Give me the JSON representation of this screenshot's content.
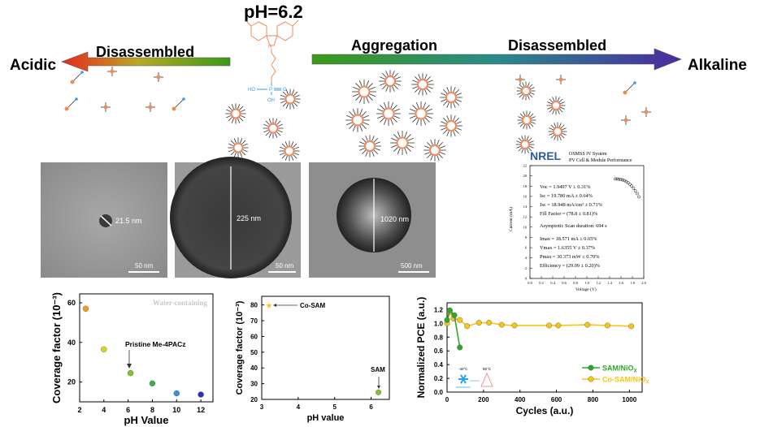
{
  "schematic": {
    "ph_title": "pH=6.2",
    "acidic": "Acidic",
    "alkaline": "Alkaline",
    "left_label": "Disassembled",
    "aggregation": "Aggregation",
    "right_label": "Disassembled",
    "molecule_ho": "HO",
    "molecule_p": "P",
    "molecule_o": "O",
    "molecule_oh": "OH",
    "molecule_n": "N",
    "colors": {
      "acid": "#e8271c",
      "neutral": "#3a9a18",
      "base": "#4b2aa0",
      "molecule": "#f08a5d",
      "phosphonic": "#3d9be9"
    }
  },
  "tem": [
    {
      "size": "21.5 nm",
      "scale": "50 nm"
    },
    {
      "size": "225 nm",
      "scale": "50 nm"
    },
    {
      "size": "1020 nm",
      "scale": "500 nm"
    }
  ],
  "nrel": {
    "logo": "NREL",
    "system": "OSMSS IV System",
    "subtitle": "PV Cell & Module Performance",
    "lines": [
      "Voc = 1.9497 V ± 0.31%",
      "Isc = 19.780 mA ± 0.64%",
      "Jsc = 18.948 mA/cm² ± 0.71%",
      "Fill Factor = (78.8 ± 0.81)%",
      "Asymptotic Scan duration: 694 s",
      "Imax = 18.571 mA ± 0.65%",
      "Vmax = 1.6355 V ± 0.37%",
      "Pmax = 30.373 mW ± 0.70%",
      "Efficiency = (29.09 ± 0.20)%"
    ],
    "xlabel": "Voltage (V)",
    "ylabel": "Current (mA)",
    "xticks": [
      "0.0",
      "0.2",
      "0.4",
      "0.6",
      "0.8",
      "1.0",
      "1.2",
      "1.4",
      "1.6",
      "1.8",
      "2.0"
    ],
    "yticks": [
      "0",
      "2",
      "4",
      "6",
      "8",
      "10",
      "12",
      "14",
      "16",
      "18",
      "20",
      "22"
    ]
  },
  "chart_data": [
    {
      "type": "scatter",
      "title": "",
      "annotation": "Water-containing",
      "callout": "Pristine Me-4PACz",
      "xlabel": "pH Value",
      "ylabel": "Coverage factor (10⁻³)",
      "xlim": [
        2,
        13
      ],
      "ylim": [
        10,
        64.5
      ],
      "xticks": [
        2,
        4,
        6,
        8,
        10,
        12
      ],
      "yticks": [
        20,
        40,
        60
      ],
      "points": [
        {
          "x": 2.5,
          "y": 57,
          "color": "#f59a1b"
        },
        {
          "x": 4,
          "y": 36.5,
          "color": "#d6d81e"
        },
        {
          "x": 6.2,
          "y": 24.5,
          "color": "#7cc52a"
        },
        {
          "x": 8,
          "y": 19.3,
          "color": "#3fae4f"
        },
        {
          "x": 10,
          "y": 14.3,
          "color": "#3a8fe0"
        },
        {
          "x": 12,
          "y": 13.7,
          "color": "#2a2fc4"
        }
      ]
    },
    {
      "type": "scatter",
      "xlabel": "pH value",
      "ylabel": "Coverage factor (10⁻³)",
      "xlim": [
        3,
        6.5
      ],
      "ylim": [
        20,
        85.5
      ],
      "xticks": [
        3,
        4,
        5,
        6
      ],
      "yticks": [
        20,
        30,
        40,
        50,
        60,
        70,
        80
      ],
      "points": [
        {
          "label": "Co-SAM",
          "x": 3.2,
          "y": 79.5,
          "color": "#f5c518",
          "marker": "star"
        },
        {
          "label": "SAM",
          "x": 6.2,
          "y": 24.5,
          "color": "#7cc52a",
          "marker": "circle"
        }
      ]
    },
    {
      "type": "line",
      "xlabel": "Cycles (a.u.)",
      "ylabel": "Normalized PCE (a.u.)",
      "xlim": [
        0,
        1070
      ],
      "ylim": [
        0,
        1.3
      ],
      "xticks": [
        0,
        200,
        400,
        600,
        800,
        1000
      ],
      "yticks": [
        0.0,
        0.2,
        0.4,
        0.6,
        0.8,
        1.0,
        1.2
      ],
      "legend_position": "bottom-right",
      "inset": {
        "cold": "-40°C",
        "hot": "85°C"
      },
      "series": [
        {
          "name": "SAM/NiO",
          "sub": "X",
          "color": "#2fa82a",
          "x": [
            0,
            15,
            40,
            70
          ],
          "y": [
            1.05,
            1.19,
            1.12,
            0.65
          ]
        },
        {
          "name": "Co-SAM/NiO",
          "sub": "X",
          "color": "#f5c518",
          "x": [
            0,
            15,
            35,
            70,
            110,
            175,
            230,
            300,
            370,
            560,
            610,
            770,
            880,
            1010
          ],
          "y": [
            1.0,
            1.17,
            1.07,
            1.05,
            0.96,
            1.01,
            1.01,
            0.98,
            0.97,
            0.97,
            0.97,
            0.98,
            0.97,
            0.96
          ]
        }
      ]
    }
  ]
}
